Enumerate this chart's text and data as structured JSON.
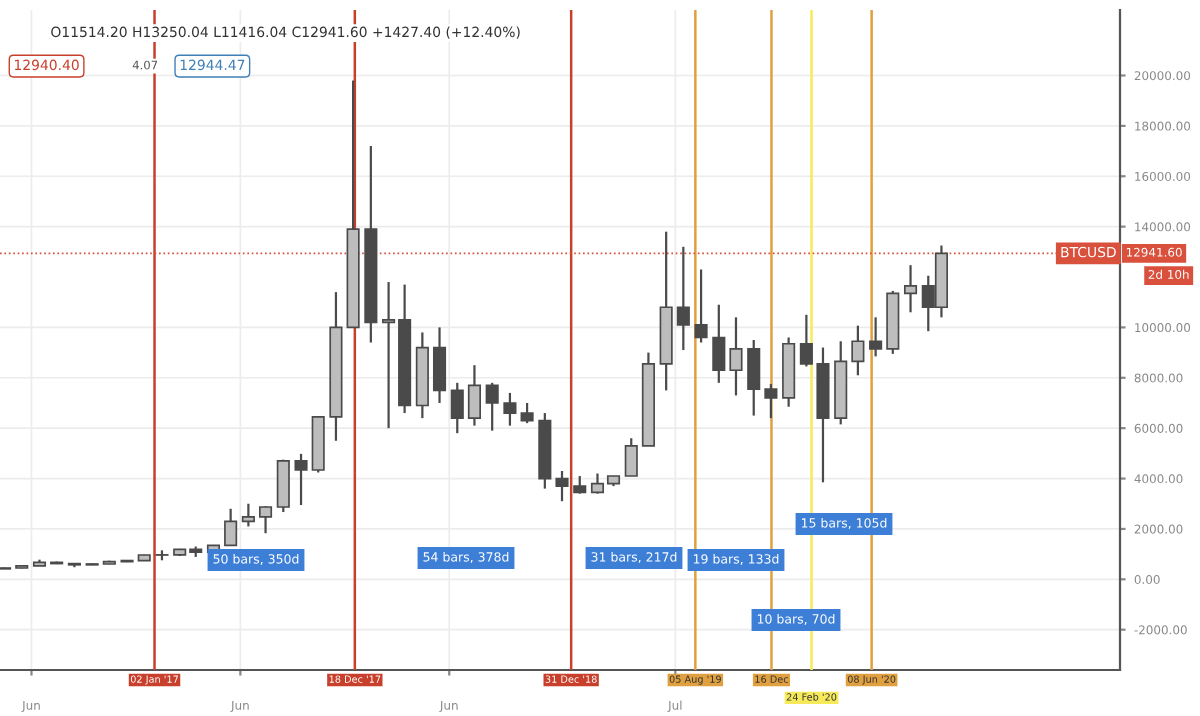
{
  "chart_data": {
    "type": "candlestick",
    "color": "#4a4a4a",
    "x": [
      "2016-04-15",
      "2016-05-15",
      "2016-06-15",
      "2016-07-15",
      "2016-08-15",
      "2016-09-15",
      "2016-10-15",
      "2016-11-15",
      "2016-12-15",
      "2017-01-15",
      "2017-02-15",
      "2017-03-15",
      "2017-04-15",
      "2017-05-15",
      "2017-06-15",
      "2017-07-15",
      "2017-08-15",
      "2017-09-15",
      "2017-10-15",
      "2017-11-15",
      "2017-12-15",
      "2018-01-15",
      "2018-02-15",
      "2018-03-15",
      "2018-04-15",
      "2018-05-15",
      "2018-06-15",
      "2018-07-15",
      "2018-08-15",
      "2018-09-15",
      "2018-10-15",
      "2018-11-15",
      "2018-12-15",
      "2019-01-15",
      "2019-02-15",
      "2019-03-15",
      "2019-04-15",
      "2019-05-15",
      "2019-06-15",
      "2019-07-15",
      "2019-08-15",
      "2019-09-15",
      "2019-10-15",
      "2019-11-15",
      "2019-12-15",
      "2020-01-15",
      "2020-02-15",
      "2020-03-15",
      "2020-04-15",
      "2020-05-15",
      "2020-06-15",
      "2020-07-15",
      "2020-08-15",
      "2020-09-15",
      "2020-10-08"
    ],
    "ohlc": [
      [
        416,
        467,
        415,
        448
      ],
      [
        448,
        548,
        435,
        531
      ],
      [
        531,
        780,
        525,
        673
      ],
      [
        673,
        704,
        606,
        624
      ],
      [
        624,
        626,
        480,
        575
      ],
      [
        575,
        628,
        568,
        609
      ],
      [
        609,
        740,
        605,
        700
      ],
      [
        700,
        755,
        685,
        745
      ],
      [
        745,
        975,
        745,
        964
      ],
      [
        964,
        1150,
        755,
        970
      ],
      [
        970,
        1210,
        925,
        1190
      ],
      [
        1190,
        1300,
        890,
        1080
      ],
      [
        1080,
        1350,
        1060,
        1350
      ],
      [
        1350,
        2800,
        1340,
        2300
      ],
      [
        2300,
        3000,
        2100,
        2480
      ],
      [
        2480,
        2900,
        1830,
        2870
      ],
      [
        2870,
        4750,
        2670,
        4700
      ],
      [
        4700,
        4980,
        2950,
        4340
      ],
      [
        4340,
        6450,
        4240,
        6450
      ],
      [
        6450,
        11400,
        5500,
        10000
      ],
      [
        10000,
        19800,
        10000,
        13900
      ],
      [
        13900,
        17200,
        9400,
        10200
      ],
      [
        10200,
        11800,
        6000,
        10300
      ],
      [
        10300,
        11700,
        6600,
        6900
      ],
      [
        6900,
        9800,
        6400,
        9200
      ],
      [
        9200,
        10000,
        7000,
        7500
      ],
      [
        7500,
        7800,
        5800,
        6400
      ],
      [
        6400,
        8500,
        6100,
        7700
      ],
      [
        7700,
        7800,
        5900,
        7000
      ],
      [
        7000,
        7400,
        6100,
        6600
      ],
      [
        6600,
        7000,
        6200,
        6300
      ],
      [
        6300,
        6600,
        3600,
        4000
      ],
      [
        4000,
        4300,
        3100,
        3700
      ],
      [
        3700,
        4100,
        3400,
        3450
      ],
      [
        3450,
        4200,
        3400,
        3800
      ],
      [
        3800,
        4100,
        3700,
        4100
      ],
      [
        4100,
        5600,
        4100,
        5300
      ],
      [
        5300,
        9000,
        5300,
        8550
      ],
      [
        8550,
        13800,
        7500,
        10800
      ],
      [
        10800,
        13200,
        9100,
        10100
      ],
      [
        10100,
        12300,
        9400,
        9600
      ],
      [
        9600,
        10900,
        7800,
        8300
      ],
      [
        8300,
        10400,
        7300,
        9150
      ],
      [
        9150,
        9500,
        6500,
        7550
      ],
      [
        7550,
        7750,
        6400,
        7200
      ],
      [
        7200,
        9600,
        6850,
        9350
      ],
      [
        9350,
        10500,
        8450,
        8550
      ],
      [
        8550,
        9200,
        3850,
        6400
      ],
      [
        6400,
        9450,
        6150,
        8650
      ],
      [
        8650,
        10070,
        8100,
        9450
      ],
      [
        9450,
        10400,
        8850,
        9150
      ],
      [
        9150,
        11450,
        8950,
        11350
      ],
      [
        11350,
        12470,
        10600,
        11650
      ],
      [
        11650,
        12050,
        9850,
        10800
      ],
      [
        10800,
        13250,
        10400,
        12941.6
      ]
    ],
    "xlim": [
      "2016-04-07",
      "2021-08-16"
    ],
    "ylim": [
      -3600,
      22600
    ],
    "xticks": [
      {
        "value": "2016-06-01",
        "label": "Jun"
      },
      {
        "value": "2017-06-01",
        "label": "Jun"
      },
      {
        "value": "2018-06-01",
        "label": "Jun"
      },
      {
        "value": "2019-07-01",
        "label": "Jul"
      }
    ],
    "yticks": [
      {
        "value": -2000,
        "label": "-2000.00"
      },
      {
        "value": 0,
        "label": "0.00"
      },
      {
        "value": 2000,
        "label": "2000.00"
      },
      {
        "value": 4000,
        "label": "4000.00"
      },
      {
        "value": 6000,
        "label": "6000.00"
      },
      {
        "value": 8000,
        "label": "8000.00"
      },
      {
        "value": 10000,
        "label": "10000.00"
      },
      {
        "value": 14000,
        "label": "14000.00"
      },
      {
        "value": 16000,
        "label": "16000.00"
      },
      {
        "value": 18000,
        "label": "18000.00"
      },
      {
        "value": 20000,
        "label": "20000.00"
      }
    ],
    "grid": true,
    "ref_lines": [
      {
        "axis": "x",
        "value": "2017-01-02",
        "label": "02 Jan '17",
        "color": "#c8402c"
      },
      {
        "axis": "x",
        "value": "2017-12-18",
        "label": "18 Dec '17",
        "color": "#c8402c"
      },
      {
        "axis": "x",
        "value": "2018-12-31",
        "label": "31 Dec '18",
        "color": "#c8402c"
      },
      {
        "axis": "x",
        "value": "2019-08-05",
        "label": "05 Aug '19",
        "color": "#e0a040"
      },
      {
        "axis": "x",
        "value": "2019-12-16",
        "label": "16 Dec",
        "color": "#e0a040"
      },
      {
        "axis": "x",
        "value": "2020-02-24",
        "label": "24 Feb '20",
        "color": "#f7ea5a"
      },
      {
        "axis": "x",
        "value": "2020-06-08",
        "label": "08 Jun '20",
        "color": "#e0a040"
      },
      {
        "axis": "y",
        "value": 12941.6,
        "label": "12941.60",
        "color": "#d9503c",
        "line_style": "dotted"
      }
    ],
    "annotations": [
      "O11514.20 H13250.04 L11416.04 C12941.60 +1427.40 (+12.40%)",
      "12940.40",
      "4.07",
      "12944.47",
      "BTCUSD",
      "2d 10h",
      "50 bars, 350d",
      "54 bars, 378d",
      "31 bars, 217d",
      "19 bars, 133d",
      "10 bars, 70d",
      "15 bars, 105d"
    ]
  }
}
